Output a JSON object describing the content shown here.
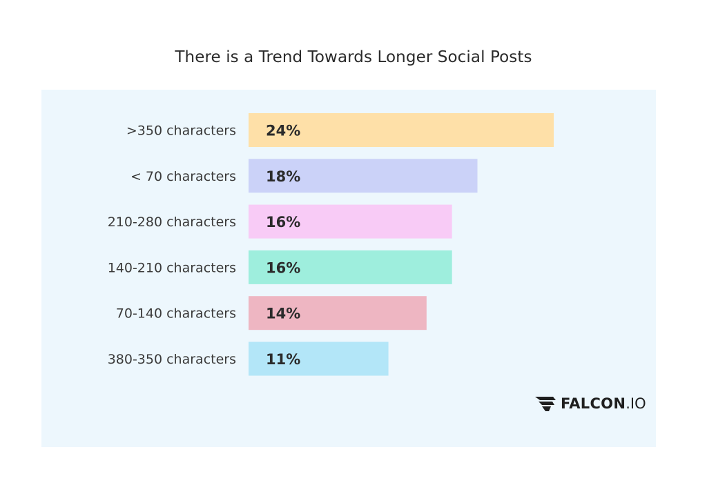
{
  "title": "There is a Trend Towards Longer Social Posts",
  "brand": {
    "name": "FALCON",
    "tld": ".IO",
    "icon": "falcon-wing-icon"
  },
  "chart_data": {
    "type": "bar",
    "orientation": "horizontal",
    "title": "There is a Trend Towards Longer Social Posts",
    "xlabel": "",
    "ylabel": "",
    "grid": false,
    "xlim": [
      0,
      24
    ],
    "categories": [
      ">350 characters",
      "< 70 characters",
      "210-280 characters",
      "140-210 characters",
      "70-140 characters",
      "380-350 characters"
    ],
    "values": [
      24,
      18,
      16,
      16,
      14,
      11
    ],
    "value_labels": [
      "24%",
      "18%",
      "16%",
      "16%",
      "14%",
      "11%"
    ],
    "colors": [
      "#fee0a8",
      "#cbd2f8",
      "#f8cbf6",
      "#9eeedd",
      "#eeb6c2",
      "#b3e6f8"
    ]
  }
}
